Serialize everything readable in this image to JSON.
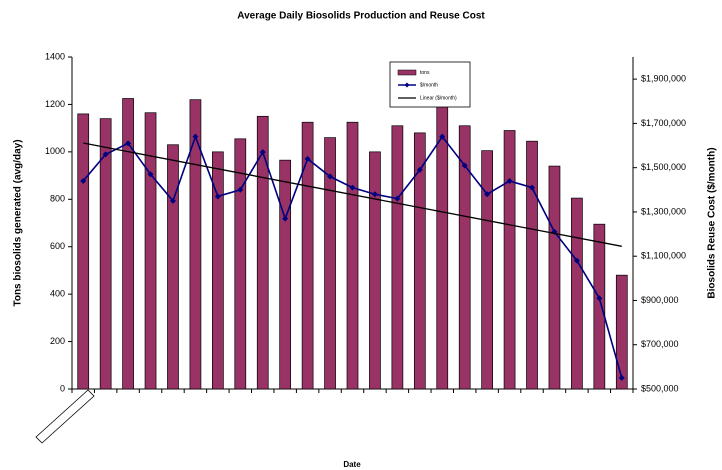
{
  "chart_data": {
    "type": "bar_line",
    "title": "Average Daily Biosolids Production and Reuse Cost",
    "x_label": "Date",
    "y_label": "Tons biosolids generated (avg/day)",
    "y2_label": "Biosolids Reuse Cost ($/month)",
    "categories": [
      null,
      null,
      null,
      null,
      null,
      null,
      null,
      null,
      null,
      null,
      null,
      null,
      null,
      null,
      null,
      null,
      null,
      null,
      null,
      null,
      null,
      null,
      null,
      null,
      null
    ],
    "series": [
      {
        "name": "tons",
        "color": "#993366",
        "values": [
          1160,
          1140,
          1225,
          1165,
          1030,
          1220,
          1000,
          1055,
          1150,
          965,
          1125,
          1060,
          1125,
          1000,
          1110,
          1080,
          1195,
          1110,
          1005,
          1090,
          1045,
          940,
          805,
          695,
          480
        ]
      },
      {
        "name": "$/month",
        "color": "#000080",
        "axis": "y2",
        "values": [
          1440000,
          1560000,
          1610000,
          1470000,
          1350000,
          1640000,
          1370000,
          1400000,
          1570000,
          1270000,
          1540000,
          1460000,
          1410000,
          1380000,
          1360000,
          1490000,
          1640000,
          1510000,
          1380000,
          1440000,
          1410000,
          1210000,
          1080000,
          910000,
          550000
        ]
      }
    ],
    "trendline": {
      "name": "Linear ($/month)",
      "color": "#000000"
    },
    "ylim": [
      0,
      1400
    ],
    "yticks": [
      0,
      200,
      400,
      600,
      800,
      1000,
      1200,
      1400
    ],
    "y2lim": [
      500000,
      2000000
    ],
    "y2ticks": [
      {
        "value": 500000,
        "label": "$500,000"
      },
      {
        "value": 700000,
        "label": "$700,000"
      },
      {
        "value": 900000,
        "label": "$900,000"
      },
      {
        "value": 1100000,
        "label": "$1,100,000"
      },
      {
        "value": 1300000,
        "label": "$1,300,000"
      },
      {
        "value": 1500000,
        "label": "$1,500,000"
      },
      {
        "value": 1700000,
        "label": "$1,700,000"
      },
      {
        "value": 1900000,
        "label": "$1,900,000"
      }
    ],
    "grid": false,
    "legend": "top"
  }
}
